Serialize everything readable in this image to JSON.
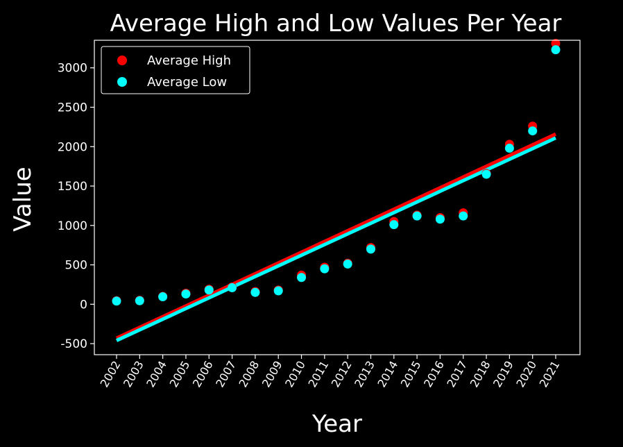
{
  "chart_data": {
    "type": "scatter",
    "title": "Average High and Low Values Per Year",
    "xlabel": "Year",
    "ylabel": "Value",
    "x": [
      "2002",
      "2003",
      "2004",
      "2005",
      "2006",
      "2007",
      "2008",
      "2009",
      "2010",
      "2011",
      "2012",
      "2013",
      "2014",
      "2015",
      "2016",
      "2017",
      "2018",
      "2019",
      "2020",
      "2021"
    ],
    "ylim": [
      -640,
      3350
    ],
    "yticks": [
      -500,
      0,
      500,
      1000,
      1500,
      2000,
      2500,
      3000
    ],
    "grid": false,
    "legend_position": "top-left",
    "series": [
      {
        "name": "Average High",
        "color": "#ff0000",
        "values": [
          45,
          50,
          100,
          140,
          190,
          220,
          160,
          180,
          370,
          470,
          520,
          720,
          1050,
          1130,
          1100,
          1160,
          1660,
          2030,
          2260,
          3310
        ],
        "trend": {
          "start": -430,
          "end": 2160
        }
      },
      {
        "name": "Average Low",
        "color": "#00ffff",
        "values": [
          40,
          45,
          95,
          130,
          180,
          210,
          150,
          170,
          340,
          450,
          510,
          700,
          1010,
          1120,
          1080,
          1120,
          1650,
          1980,
          2200,
          3230
        ],
        "trend": {
          "start": -460,
          "end": 2110
        }
      }
    ]
  }
}
